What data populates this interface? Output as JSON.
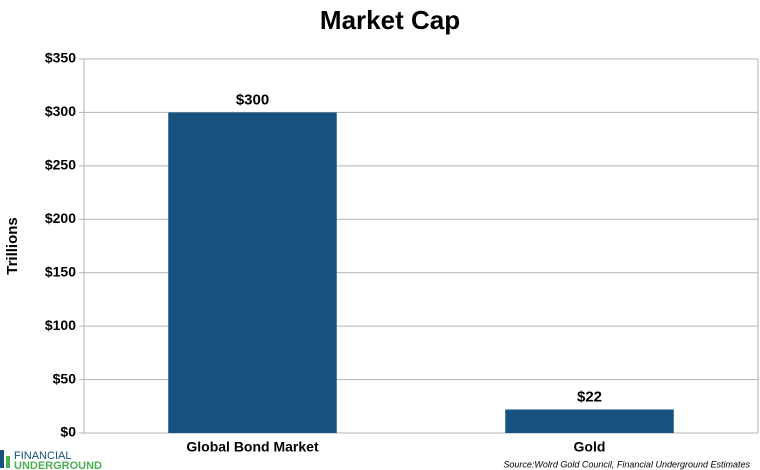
{
  "chart_data": {
    "type": "bar",
    "title": "Market Cap",
    "y_label": "Trillions",
    "categories": [
      "Global Bond Market",
      "Gold"
    ],
    "values": [
      300,
      22
    ],
    "value_labels": [
      "$300",
      "$22"
    ],
    "color": "#17527f",
    "ylim": [
      0,
      350
    ],
    "yticks": [
      {
        "value": 0,
        "label": "$0"
      },
      {
        "value": 50,
        "label": "$50"
      },
      {
        "value": 100,
        "label": "$100"
      },
      {
        "value": 150,
        "label": "$150"
      },
      {
        "value": 200,
        "label": "$200"
      },
      {
        "value": 250,
        "label": "$250"
      },
      {
        "value": 300,
        "label": "$300"
      },
      {
        "value": 350,
        "label": "$350"
      }
    ],
    "grid": true,
    "source": "Source:Wolrd Gold Council, Financial Underground Estimates",
    "logo": [
      "FINANCIAL",
      "UNDERGROUND"
    ]
  }
}
